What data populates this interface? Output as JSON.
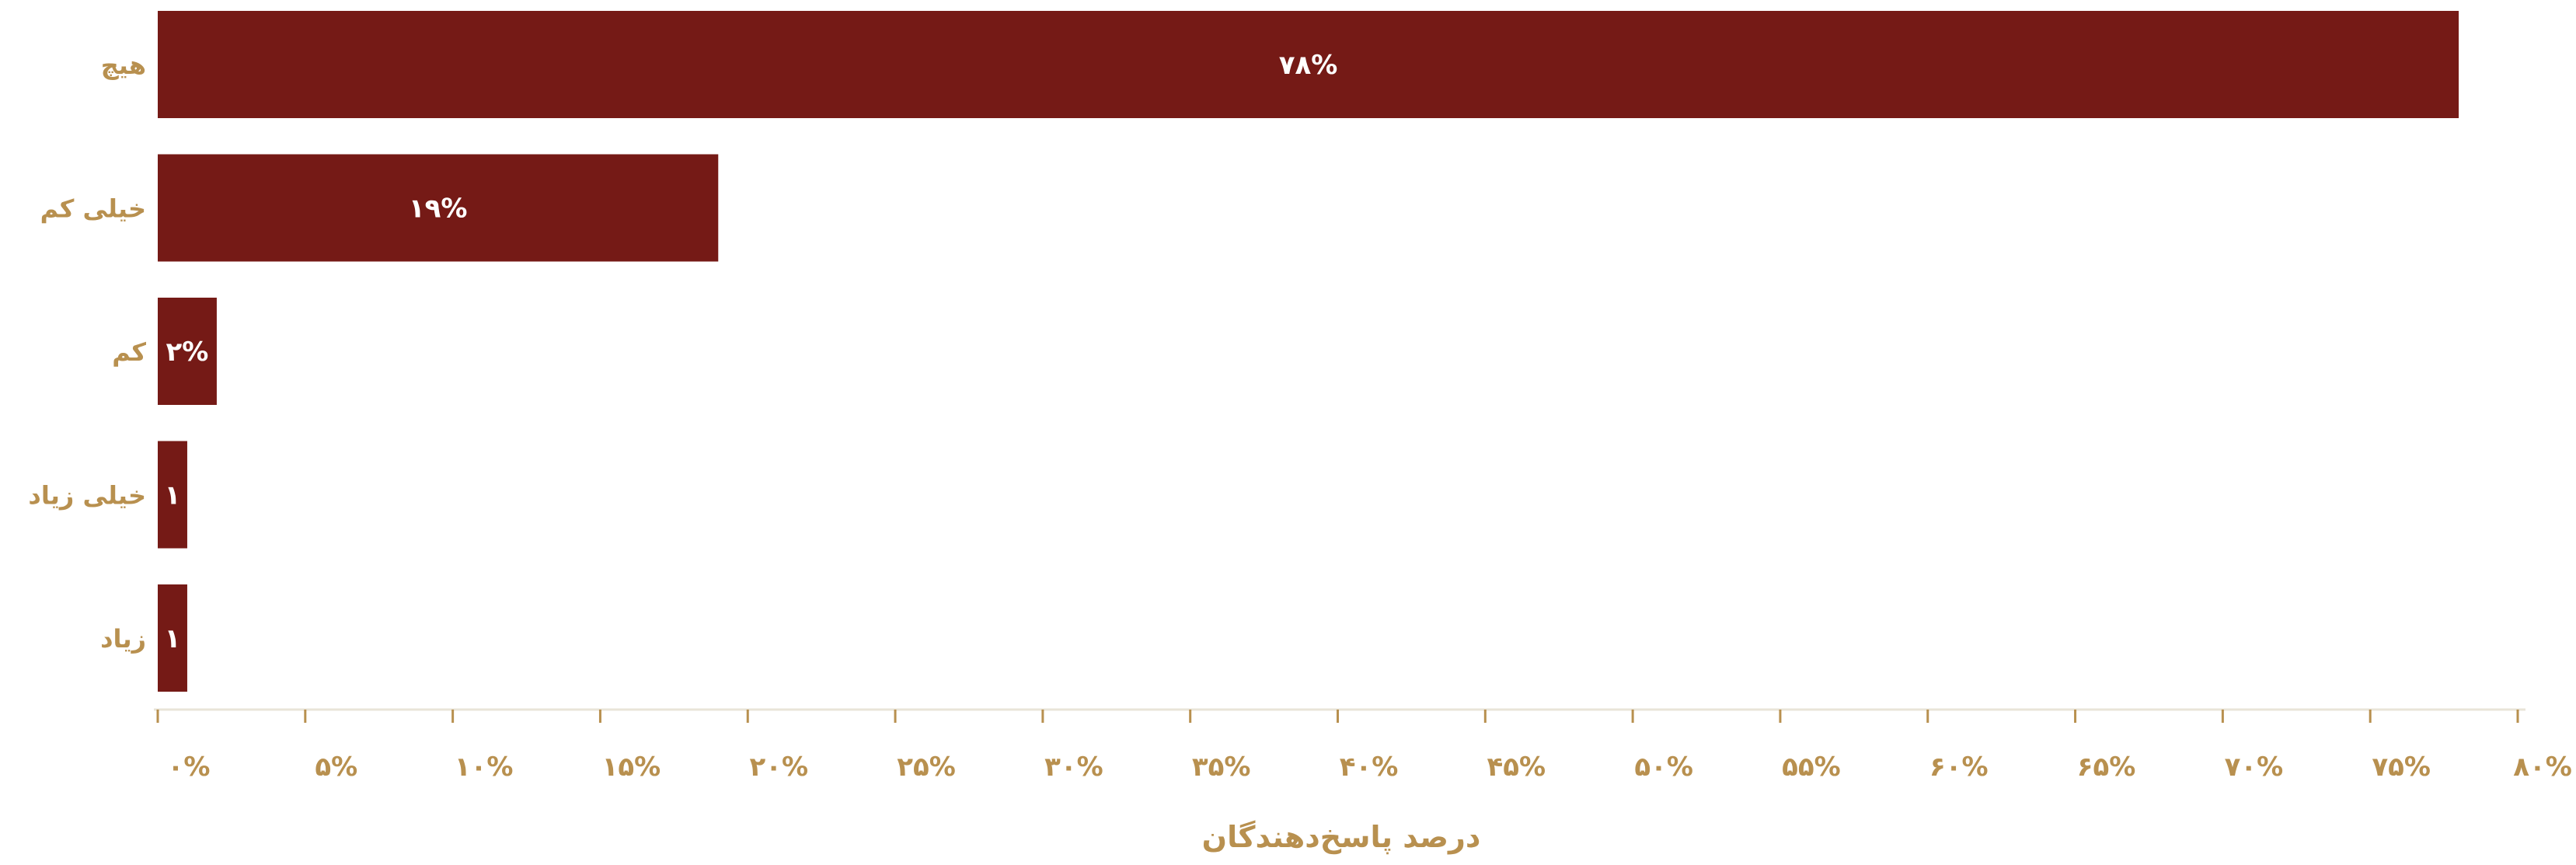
{
  "chart_data": {
    "type": "bar",
    "orientation": "horizontal",
    "categories": [
      "هیچ",
      "خیلی کم",
      "کم",
      "خیلی زیاد",
      "زیاد"
    ],
    "values": [
      78,
      19,
      2,
      1,
      1
    ],
    "bar_labels": [
      "۷۸%",
      "۱۹%",
      "۲%",
      "۱",
      "۱"
    ],
    "xlabel": "درصد پاسخ‌دهندگان",
    "xlim": [
      0,
      80
    ],
    "xticks": [
      0,
      5,
      10,
      15,
      20,
      25,
      30,
      35,
      40,
      45,
      50,
      55,
      60,
      65,
      70,
      75,
      80
    ],
    "xtick_labels": [
      "۰%",
      "۵%",
      "۱۰%",
      "۱۵%",
      "۲۰%",
      "۲۵%",
      "۳۰%",
      "۳۵%",
      "۴۰%",
      "۴۵%",
      "۵۰%",
      "۵۵%",
      "۶۰%",
      "۶۵%",
      "۷۰%",
      "۷۵%",
      "۸۰%"
    ],
    "grid": false,
    "legend": "none",
    "colors": {
      "bar": "#751a16",
      "text": "#b8904f",
      "axis": "#e9e4d8",
      "bar_label": "#ffffff"
    }
  }
}
